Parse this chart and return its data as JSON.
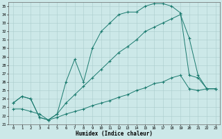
{
  "xlabel": "Humidex (Indice chaleur)",
  "bg_color": "#cce8e8",
  "line_color": "#1a7a6e",
  "grid_color": "#b8d8d8",
  "xlim": [
    -0.5,
    23.5
  ],
  "ylim": [
    21,
    35.5
  ],
  "xticks": [
    0,
    1,
    2,
    3,
    4,
    5,
    6,
    7,
    8,
    9,
    10,
    11,
    12,
    13,
    14,
    15,
    16,
    17,
    18,
    19,
    20,
    21,
    22,
    23
  ],
  "yticks": [
    21,
    22,
    23,
    24,
    25,
    26,
    27,
    28,
    29,
    30,
    31,
    32,
    33,
    34,
    35
  ],
  "curve1_x": [
    0,
    1,
    2,
    3,
    4,
    5,
    6,
    7,
    8,
    9,
    10,
    11,
    12,
    13,
    14,
    15,
    16,
    17,
    18,
    19,
    20,
    21,
    22,
    23
  ],
  "curve1_y": [
    23.5,
    24.3,
    24.0,
    21.8,
    21.5,
    22.2,
    26.0,
    28.7,
    26.0,
    30.0,
    32.0,
    33.0,
    34.0,
    34.3,
    34.3,
    35.0,
    35.3,
    35.3,
    35.0,
    34.2,
    26.8,
    26.5,
    25.2,
    25.2
  ],
  "curve2_x": [
    0,
    1,
    2,
    3,
    4,
    5,
    6,
    7,
    8,
    9,
    10,
    11,
    12,
    13,
    14,
    15,
    16,
    17,
    18,
    19,
    20,
    21,
    22,
    23
  ],
  "curve2_y": [
    23.5,
    24.3,
    24.0,
    21.8,
    21.5,
    22.2,
    23.5,
    24.5,
    25.5,
    26.5,
    27.5,
    28.5,
    29.5,
    30.2,
    31.0,
    32.0,
    32.5,
    33.0,
    33.5,
    34.0,
    31.2,
    26.8,
    25.2,
    25.2
  ],
  "curve3_x": [
    0,
    1,
    2,
    3,
    4,
    5,
    6,
    7,
    8,
    9,
    10,
    11,
    12,
    13,
    14,
    15,
    16,
    17,
    18,
    19,
    20,
    21,
    22,
    23
  ],
  "curve3_y": [
    22.8,
    22.8,
    22.5,
    22.2,
    21.5,
    21.8,
    22.2,
    22.5,
    22.8,
    23.2,
    23.5,
    23.8,
    24.2,
    24.5,
    25.0,
    25.3,
    25.8,
    26.0,
    26.5,
    26.8,
    25.2,
    25.0,
    25.2,
    25.2
  ]
}
